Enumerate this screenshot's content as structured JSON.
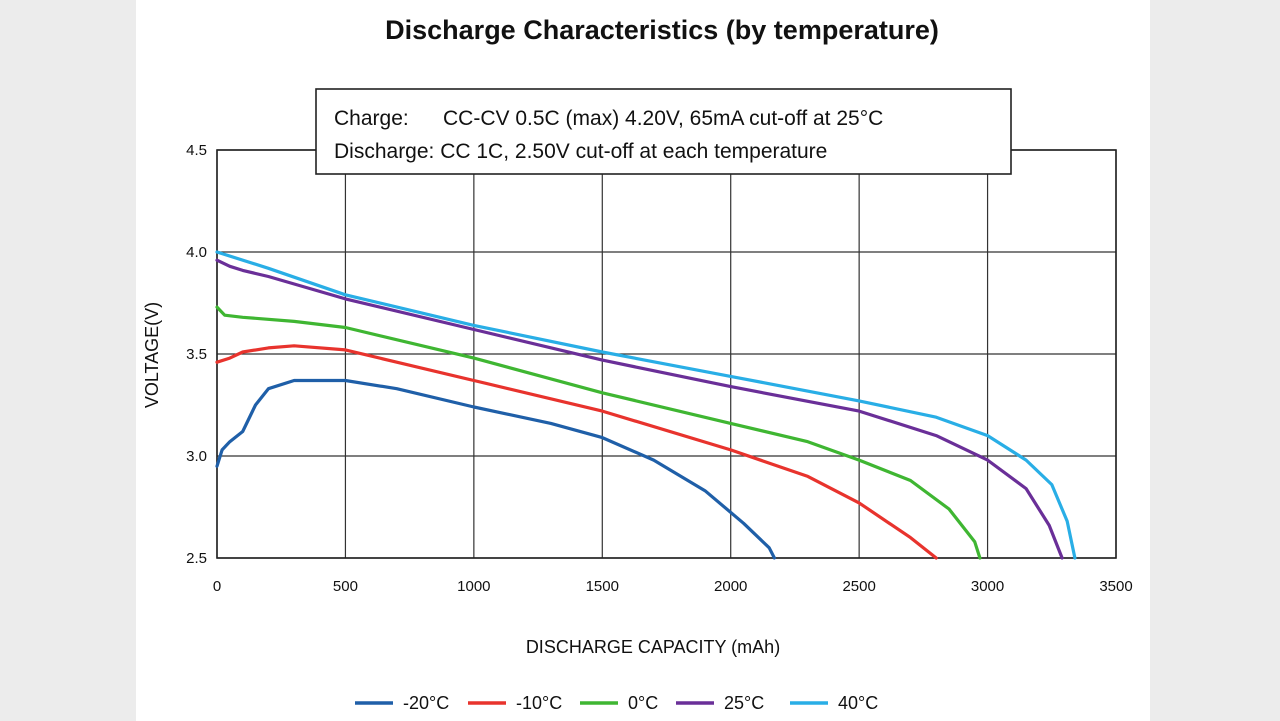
{
  "chart_data": {
    "type": "line",
    "title": "Discharge Characteristics (by temperature)",
    "xlabel": "DISCHARGE CAPACITY (mAh)",
    "ylabel": "VOLTAGE(V)",
    "xlim": [
      0,
      3500
    ],
    "ylim": [
      2.5,
      4.5
    ],
    "x_ticks": [
      "0",
      "500",
      "1000",
      "1500",
      "2000",
      "2500",
      "3000",
      "3500"
    ],
    "y_ticks": [
      "2.5",
      "3.0",
      "3.5",
      "4.0",
      "4.5"
    ],
    "grid": true,
    "legend_position": "bottom",
    "annotation": {
      "line1_label": "Charge:",
      "line1_text": "CC-CV 0.5C (max) 4.20V, 65mA cut-off at 25°C",
      "line2_text": "Discharge: CC 1C, 2.50V cut-off at each temperature"
    },
    "series": [
      {
        "name": "-20°C",
        "color": "#1f5fa8",
        "points": [
          [
            0,
            2.95
          ],
          [
            20,
            3.03
          ],
          [
            50,
            3.07
          ],
          [
            100,
            3.12
          ],
          [
            150,
            3.25
          ],
          [
            200,
            3.33
          ],
          [
            300,
            3.37
          ],
          [
            500,
            3.37
          ],
          [
            700,
            3.33
          ],
          [
            1000,
            3.24
          ],
          [
            1300,
            3.16
          ],
          [
            1500,
            3.09
          ],
          [
            1700,
            2.98
          ],
          [
            1900,
            2.83
          ],
          [
            2050,
            2.67
          ],
          [
            2150,
            2.55
          ],
          [
            2170,
            2.5
          ]
        ]
      },
      {
        "name": "-10°C",
        "color": "#e8332d",
        "points": [
          [
            0,
            3.46
          ],
          [
            50,
            3.48
          ],
          [
            100,
            3.51
          ],
          [
            200,
            3.53
          ],
          [
            300,
            3.54
          ],
          [
            500,
            3.52
          ],
          [
            700,
            3.46
          ],
          [
            1000,
            3.37
          ],
          [
            1500,
            3.22
          ],
          [
            2000,
            3.03
          ],
          [
            2300,
            2.9
          ],
          [
            2500,
            2.77
          ],
          [
            2700,
            2.6
          ],
          [
            2800,
            2.5
          ]
        ]
      },
      {
        "name": "0°C",
        "color": "#3fb632",
        "points": [
          [
            0,
            3.73
          ],
          [
            30,
            3.69
          ],
          [
            100,
            3.68
          ],
          [
            300,
            3.66
          ],
          [
            500,
            3.63
          ],
          [
            1000,
            3.48
          ],
          [
            1500,
            3.31
          ],
          [
            2000,
            3.16
          ],
          [
            2300,
            3.07
          ],
          [
            2500,
            2.98
          ],
          [
            2700,
            2.88
          ],
          [
            2850,
            2.74
          ],
          [
            2950,
            2.58
          ],
          [
            2970,
            2.5
          ]
        ]
      },
      {
        "name": "25°C",
        "color": "#6a2f98",
        "points": [
          [
            0,
            3.96
          ],
          [
            50,
            3.93
          ],
          [
            100,
            3.91
          ],
          [
            200,
            3.88
          ],
          [
            500,
            3.77
          ],
          [
            1000,
            3.62
          ],
          [
            1500,
            3.47
          ],
          [
            2000,
            3.34
          ],
          [
            2500,
            3.22
          ],
          [
            2800,
            3.1
          ],
          [
            3000,
            2.98
          ],
          [
            3150,
            2.84
          ],
          [
            3240,
            2.66
          ],
          [
            3290,
            2.5
          ]
        ]
      },
      {
        "name": "40°C",
        "color": "#29aee6",
        "points": [
          [
            0,
            4.0
          ],
          [
            200,
            3.92
          ],
          [
            500,
            3.79
          ],
          [
            1000,
            3.64
          ],
          [
            1500,
            3.51
          ],
          [
            2000,
            3.39
          ],
          [
            2500,
            3.27
          ],
          [
            2800,
            3.19
          ],
          [
            3000,
            3.1
          ],
          [
            3150,
            2.98
          ],
          [
            3250,
            2.86
          ],
          [
            3310,
            2.68
          ],
          [
            3340,
            2.5
          ]
        ]
      }
    ]
  }
}
